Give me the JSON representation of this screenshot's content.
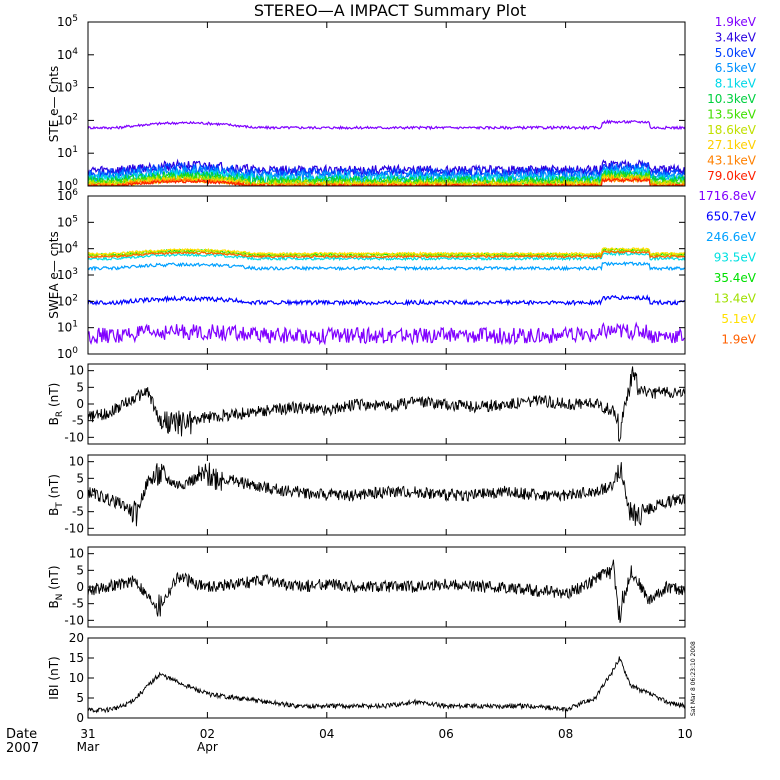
{
  "title": "STEREO—A IMPACT Summary Plot",
  "stamp": "Sat Mar  8 06:23:10 2008",
  "x_axis": {
    "date_label": "Date",
    "year_label": "2007",
    "ticks": [
      {
        "day": 0,
        "label": "31",
        "sub": "Mar"
      },
      {
        "day": 2,
        "label": "02",
        "sub": "Apr"
      },
      {
        "day": 4,
        "label": "04",
        "sub": ""
      },
      {
        "day": 6,
        "label": "06",
        "sub": ""
      },
      {
        "day": 8,
        "label": "08",
        "sub": ""
      },
      {
        "day": 10,
        "label": "10",
        "sub": ""
      }
    ],
    "range_days": [
      0,
      10
    ]
  },
  "colors": {
    "ste": [
      "#7f00ff",
      "#2a00e0",
      "#0040ff",
      "#0090ff",
      "#00d8e8",
      "#00d040",
      "#40e000",
      "#c0e000",
      "#ffd000",
      "#ff8000",
      "#ff2000"
    ],
    "swea": [
      "#8000ff",
      "#0000ff",
      "#00a0ff",
      "#00e0e0",
      "#00e000",
      "#a0e000",
      "#ffe000",
      "#ff6000"
    ]
  },
  "chart_data": [
    {
      "type": "line",
      "ylabel": "STE e— Cnts",
      "yscale": "log",
      "ylim": [
        1,
        100000
      ],
      "yticks": [
        "10^0",
        "10^1",
        "10^2",
        "10^3",
        "10^4",
        "10^5"
      ],
      "legend_placement": "right",
      "series": [
        {
          "name": "1.9keV",
          "baseline": 60,
          "noise": 0.04
        },
        {
          "name": "3.4keV",
          "baseline": 3.0,
          "noise": 0.15
        },
        {
          "name": "5.0keV",
          "baseline": 2.5,
          "noise": 0.15
        },
        {
          "name": "6.5keV",
          "baseline": 2.0,
          "noise": 0.15
        },
        {
          "name": "8.1keV",
          "baseline": 1.7,
          "noise": 0.12
        },
        {
          "name": "10.3keV",
          "baseline": 1.5,
          "noise": 0.12
        },
        {
          "name": "13.5keV",
          "baseline": 1.3,
          "noise": 0.1
        },
        {
          "name": "18.6keV",
          "baseline": 1.2,
          "noise": 0.1
        },
        {
          "name": "27.1keV",
          "baseline": 1.1,
          "noise": 0.08
        },
        {
          "name": "43.1keV",
          "baseline": 1.05,
          "noise": 0.06
        },
        {
          "name": "79.0keV",
          "baseline": 1.0,
          "noise": 0.05
        }
      ]
    },
    {
      "type": "line",
      "ylabel": "SWEA e— cnts",
      "yscale": "log",
      "ylim": [
        1,
        1000000
      ],
      "yticks": [
        "10^0",
        "10^1",
        "10^2",
        "10^3",
        "10^4",
        "10^5",
        "10^6"
      ],
      "legend_placement": "right",
      "series": [
        {
          "name": "1716.8eV",
          "baseline": 5,
          "noise": 0.3
        },
        {
          "name": "650.7eV",
          "baseline": 90,
          "noise": 0.08
        },
        {
          "name": "246.6eV",
          "baseline": 1800,
          "noise": 0.06
        },
        {
          "name": "93.5eV",
          "baseline": 4200,
          "noise": 0.05
        },
        {
          "name": "35.4eV",
          "baseline": 6000,
          "noise": 0.05
        },
        {
          "name": "13.4eV",
          "baseline": 5500,
          "noise": 0.05
        },
        {
          "name": "5.1eV",
          "baseline": 6500,
          "noise": 0.04
        },
        {
          "name": "1.9eV",
          "baseline": 5000,
          "noise": 0.04
        }
      ]
    },
    {
      "type": "line",
      "ylabel": "B_R (nT)",
      "ylim": [
        -12,
        12
      ],
      "yticks": [
        -10,
        -5,
        0,
        5,
        10
      ],
      "series": [
        {
          "x": [
            0,
            0.3,
            0.6,
            0.8,
            1.0,
            1.2,
            1.5,
            2.0,
            2.5,
            3.0,
            3.5,
            4.0,
            4.5,
            5.0,
            5.5,
            6.0,
            6.5,
            7.0,
            7.5,
            8.0,
            8.5,
            8.8,
            8.9,
            9.1,
            9.4,
            9.7,
            10.0
          ],
          "y": [
            -4,
            -3,
            0,
            2,
            4,
            -5,
            -6,
            -4,
            -3,
            -2,
            -1,
            -2,
            0,
            -1,
            1,
            0,
            -1,
            0,
            1,
            0,
            0,
            -2,
            -8,
            8,
            3,
            4,
            3
          ]
        }
      ]
    },
    {
      "type": "line",
      "ylabel": "B_T (nT)",
      "ylim": [
        -12,
        12
      ],
      "yticks": [
        -10,
        -5,
        0,
        5,
        10
      ],
      "series": [
        {
          "x": [
            0,
            0.3,
            0.6,
            0.8,
            1.0,
            1.2,
            1.5,
            2.0,
            2.5,
            3.0,
            3.5,
            4.0,
            4.5,
            5.0,
            5.5,
            6.0,
            6.5,
            7.0,
            7.5,
            8.0,
            8.5,
            8.8,
            8.9,
            9.1,
            9.4,
            9.7,
            10.0
          ],
          "y": [
            1,
            -1,
            -3,
            -6,
            4,
            6,
            3,
            6,
            4,
            2,
            1,
            0,
            0,
            1,
            1,
            0,
            0,
            1,
            0,
            0,
            1,
            3,
            9,
            -7,
            -4,
            -2,
            -1
          ]
        }
      ]
    },
    {
      "type": "line",
      "ylabel": "B_N (nT)",
      "ylim": [
        -12,
        12
      ],
      "yticks": [
        -10,
        -5,
        0,
        5,
        10
      ],
      "series": [
        {
          "x": [
            0,
            0.3,
            0.6,
            0.8,
            1.0,
            1.2,
            1.5,
            2.0,
            2.5,
            3.0,
            3.5,
            4.0,
            4.5,
            5.0,
            5.5,
            6.0,
            6.5,
            7.0,
            7.5,
            8.0,
            8.5,
            8.8,
            8.9,
            9.1,
            9.4,
            9.7,
            10.0
          ],
          "y": [
            -1,
            0,
            1,
            2,
            -3,
            -6,
            3,
            0,
            1,
            2,
            0,
            1,
            0,
            0,
            0,
            1,
            0,
            0,
            -1,
            -2,
            2,
            6,
            -9,
            5,
            -4,
            0,
            -1
          ]
        }
      ]
    },
    {
      "type": "line",
      "ylabel": "IBI (nT)",
      "ylim": [
        0,
        20
      ],
      "yticks": [
        0,
        5,
        10,
        15,
        20
      ],
      "series": [
        {
          "x": [
            0,
            0.3,
            0.6,
            0.8,
            1.0,
            1.2,
            1.5,
            2.0,
            2.5,
            3.0,
            3.5,
            4.0,
            4.5,
            5.0,
            5.5,
            6.0,
            6.5,
            7.0,
            7.5,
            8.0,
            8.5,
            8.8,
            8.9,
            9.1,
            9.4,
            9.7,
            10.0
          ],
          "y": [
            2,
            2,
            3,
            5,
            8,
            11,
            9,
            6,
            5,
            4,
            3,
            3,
            3,
            3,
            4,
            3,
            3,
            3,
            3,
            2,
            5,
            12,
            15,
            8,
            6,
            4,
            3
          ]
        }
      ]
    }
  ]
}
